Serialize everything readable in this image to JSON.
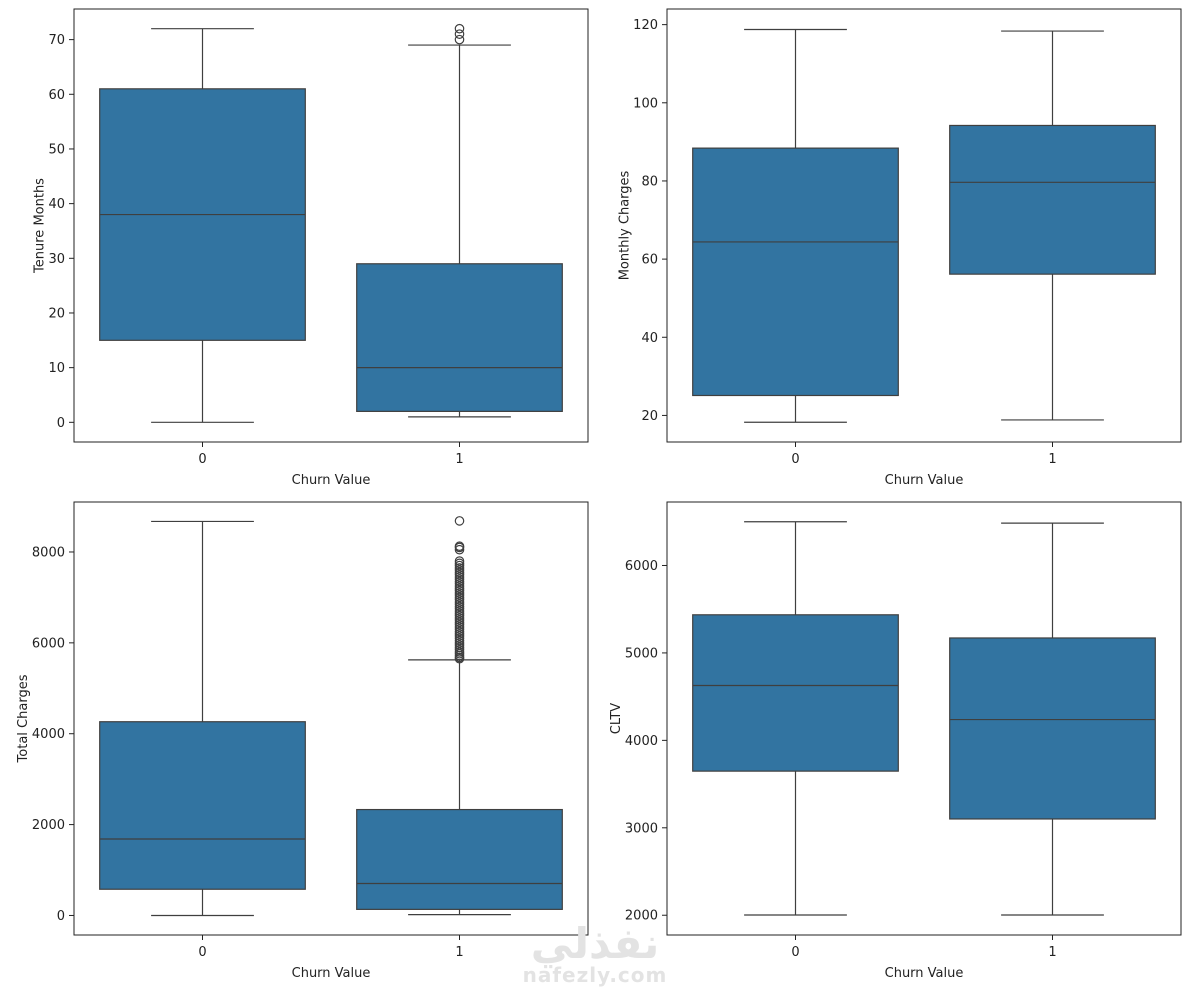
{
  "figure": {
    "watermark": {
      "arabic": "نفذلي",
      "latin": "nafezly.com"
    }
  },
  "colors": {
    "box_fill": "#3274a1",
    "line": "#3f3f3f",
    "frame": "#222222"
  },
  "chart_data": [
    {
      "type": "box",
      "xlabel": "Churn Value",
      "ylabel": "Tenure Months",
      "categories": [
        "0",
        "1"
      ],
      "ylim": [
        -3.6,
        75.6
      ],
      "yticks": [
        0,
        10,
        20,
        30,
        40,
        50,
        60,
        70
      ],
      "boxes": [
        {
          "category": "0",
          "whisker_low": 0,
          "q1": 15,
          "median": 38,
          "q3": 61,
          "whisker_high": 72,
          "outliers": []
        },
        {
          "category": "1",
          "whisker_low": 1,
          "q1": 2,
          "median": 10,
          "q3": 29,
          "whisker_high": 69,
          "outliers": [
            70,
            71,
            72
          ]
        }
      ]
    },
    {
      "type": "box",
      "xlabel": "Churn Value",
      "ylabel": "Monthly Charges",
      "categories": [
        "0",
        "1"
      ],
      "ylim": [
        13.2,
        124.0
      ],
      "yticks": [
        20,
        40,
        60,
        80,
        100,
        120
      ],
      "boxes": [
        {
          "category": "0",
          "whisker_low": 18.25,
          "q1": 25.1,
          "median": 64.4,
          "q3": 88.4,
          "whisker_high": 118.75,
          "outliers": []
        },
        {
          "category": "1",
          "whisker_low": 18.85,
          "q1": 56.15,
          "median": 79.65,
          "q3": 94.2,
          "whisker_high": 118.35,
          "outliers": []
        }
      ]
    },
    {
      "type": "box",
      "xlabel": "Churn Value",
      "ylabel": "Total Charges",
      "categories": [
        "0",
        "1"
      ],
      "ylim": [
        -430,
        9100
      ],
      "yticks": [
        0,
        2000,
        4000,
        6000,
        8000
      ],
      "boxes": [
        {
          "category": "0",
          "whisker_low": 0,
          "q1": 577,
          "median": 1683,
          "q3": 4264,
          "whisker_high": 8672,
          "outliers": []
        },
        {
          "category": "1",
          "whisker_low": 19,
          "q1": 134,
          "median": 703,
          "q3": 2331,
          "whisker_high": 5625,
          "outliers": [
            5650,
            5680,
            5720,
            5760,
            5800,
            5850,
            5900,
            5950,
            6000,
            6050,
            6100,
            6150,
            6200,
            6250,
            6300,
            6350,
            6400,
            6450,
            6500,
            6550,
            6600,
            6650,
            6700,
            6750,
            6800,
            6850,
            6900,
            6950,
            7000,
            7050,
            7100,
            7150,
            7200,
            7250,
            7300,
            7350,
            7400,
            7450,
            7500,
            7550,
            7600,
            7650,
            7700,
            7750,
            7800,
            8050,
            8100,
            8127,
            8684
          ]
        }
      ]
    },
    {
      "type": "box",
      "xlabel": "Churn Value",
      "ylabel": "CLTV",
      "categories": [
        "0",
        "1"
      ],
      "ylim": [
        1774,
        6726
      ],
      "yticks": [
        2000,
        3000,
        4000,
        5000,
        6000
      ],
      "boxes": [
        {
          "category": "0",
          "whisker_low": 2003,
          "q1": 3648,
          "median": 4627,
          "q3": 5436,
          "whisker_high": 6500,
          "outliers": []
        },
        {
          "category": "1",
          "whisker_low": 2003,
          "q1": 3101,
          "median": 4238,
          "q3": 5171,
          "whisker_high": 6484,
          "outliers": []
        }
      ]
    }
  ]
}
